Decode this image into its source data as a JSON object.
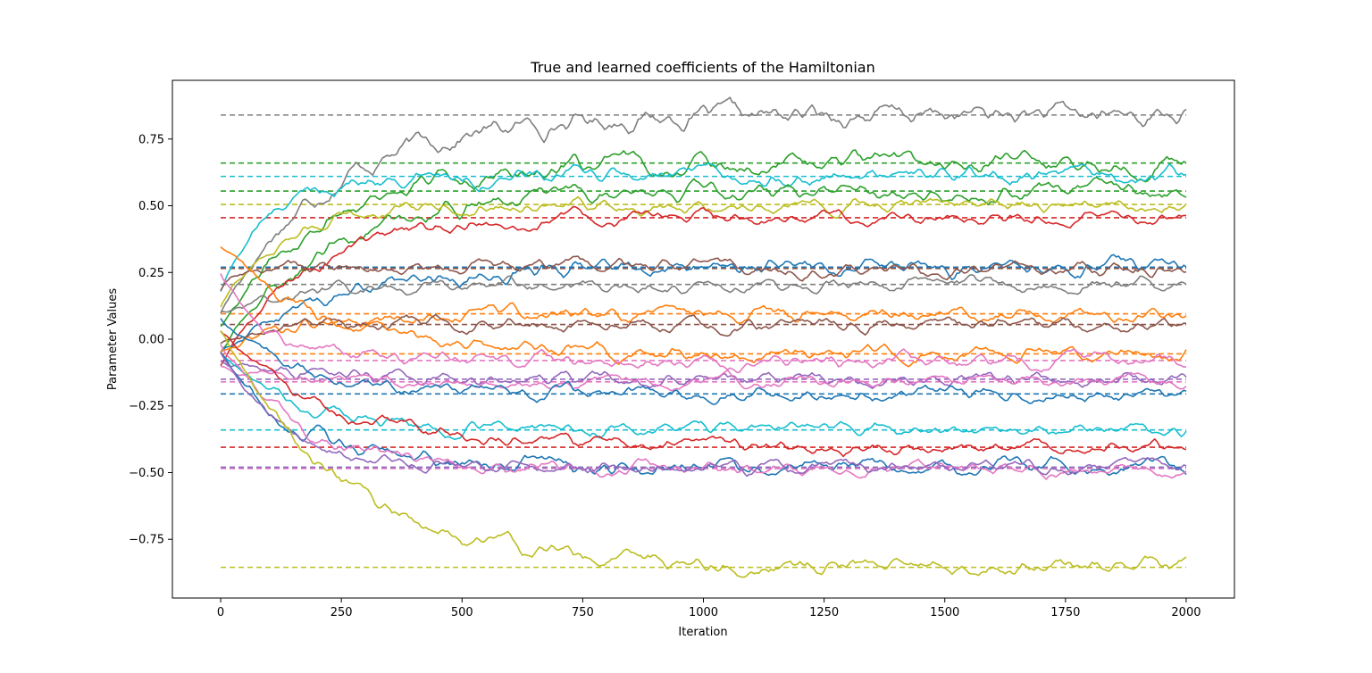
{
  "chart_data": {
    "type": "line",
    "title": "True and learned coefficients of the Hamiltonian",
    "xlabel": "Iteration",
    "ylabel": "Parameter Values",
    "xlim": [
      -100,
      2100
    ],
    "ylim": [
      -0.97,
      0.97
    ],
    "x_range": [
      0,
      2000
    ],
    "xticks": [
      0,
      250,
      500,
      750,
      1000,
      1250,
      1500,
      1750,
      2000
    ],
    "xtick_labels": [
      "0",
      "250",
      "500",
      "750",
      "1000",
      "1250",
      "1500",
      "1750",
      "2000"
    ],
    "yticks": [
      -0.75,
      -0.5,
      -0.25,
      0.0,
      0.25,
      0.5,
      0.75
    ],
    "ytick_labels": [
      "−0.75",
      "−0.50",
      "−0.25",
      "0.00",
      "0.25",
      "0.50",
      "0.75"
    ],
    "grid": false,
    "legend": false,
    "true_line_style": "dashed",
    "series": [
      {
        "color": "#7f7f7f",
        "true_value": 0.84,
        "start": 0.1,
        "converge_at": 700,
        "noise": 0.018
      },
      {
        "color": "#2ca02c",
        "true_value": 0.66,
        "start": 0.05,
        "converge_at": 650,
        "noise": 0.016
      },
      {
        "color": "#17becf",
        "true_value": 0.61,
        "start": 0.18,
        "converge_at": 300,
        "noise": 0.014
      },
      {
        "color": "#2ca02c",
        "true_value": 0.555,
        "start": -0.05,
        "converge_at": 700,
        "noise": 0.014
      },
      {
        "color": "#bcbd22",
        "true_value": 0.505,
        "start": 0.12,
        "converge_at": 400,
        "noise": 0.012
      },
      {
        "color": "#d62728",
        "true_value": 0.455,
        "start": -0.1,
        "converge_at": 550,
        "noise": 0.012
      },
      {
        "color": "#1f77b4",
        "true_value": 0.27,
        "start": -0.05,
        "converge_at": 700,
        "noise": 0.014
      },
      {
        "color": "#8c564b",
        "true_value": 0.265,
        "start": 0.18,
        "converge_at": 100,
        "noise": 0.012
      },
      {
        "color": "#7f7f7f",
        "true_value": 0.205,
        "start": 0.1,
        "converge_at": 450,
        "noise": 0.012
      },
      {
        "color": "#ff7f0e",
        "true_value": 0.095,
        "start": -0.05,
        "converge_at": 500,
        "noise": 0.012
      },
      {
        "color": "#8c564b",
        "true_value": 0.055,
        "start": -0.02,
        "converge_at": 300,
        "noise": 0.012
      },
      {
        "color": "#ff7f0e",
        "true_value": -0.055,
        "start": 0.35,
        "converge_at": 650,
        "noise": 0.012
      },
      {
        "color": "#e377c2",
        "true_value": -0.08,
        "start": 0.25,
        "converge_at": 300,
        "noise": 0.012
      },
      {
        "color": "#9467bd",
        "true_value": -0.15,
        "start": -0.08,
        "converge_at": 500,
        "noise": 0.012
      },
      {
        "color": "#e377c2",
        "true_value": -0.16,
        "start": -0.1,
        "converge_at": 400,
        "noise": 0.01
      },
      {
        "color": "#1f77b4",
        "true_value": -0.205,
        "start": 0.08,
        "converge_at": 500,
        "noise": 0.012
      },
      {
        "color": "#17becf",
        "true_value": -0.34,
        "start": -0.05,
        "converge_at": 500,
        "noise": 0.012
      },
      {
        "color": "#d62728",
        "true_value": -0.405,
        "start": 0.03,
        "converge_at": 700,
        "noise": 0.012
      },
      {
        "color": "#1f77b4",
        "true_value": -0.48,
        "start": -0.05,
        "converge_at": 500,
        "noise": 0.014
      },
      {
        "color": "#e377c2",
        "true_value": -0.485,
        "start": -0.02,
        "converge_at": 500,
        "noise": 0.012
      },
      {
        "color": "#9467bd",
        "true_value": -0.48,
        "start": -0.05,
        "converge_at": 400,
        "noise": 0.01
      },
      {
        "color": "#bcbd22",
        "true_value": -0.855,
        "start": 0.03,
        "converge_at": 800,
        "noise": 0.014
      }
    ]
  }
}
